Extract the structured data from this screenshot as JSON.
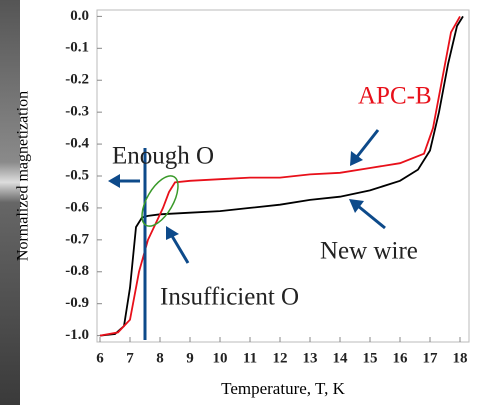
{
  "chart_data": {
    "type": "line",
    "y_label": "Normalized magnetization",
    "x_label": "Temperature, T, K",
    "xlim": [
      5.9,
      18.3
    ],
    "ylim": [
      -1.02,
      0.02
    ],
    "xticks": [
      6,
      7,
      8,
      9,
      10,
      11,
      12,
      13,
      14,
      15,
      16,
      17,
      18
    ],
    "yticks": [
      {
        "value": 0,
        "label": "0.0"
      },
      -0.1,
      -0.2,
      -0.3,
      -0.4,
      -0.5,
      -0.6,
      -0.7,
      -0.8,
      -0.9,
      {
        "value": -1,
        "label": "-1.0"
      }
    ],
    "grid": false,
    "series": [
      {
        "name": "New wire",
        "color": "#000000",
        "x": [
          6,
          6.5,
          6.8,
          7.0,
          7.2,
          7.4,
          7.6,
          8,
          9,
          10,
          11,
          12,
          13,
          14,
          15,
          16,
          16.6,
          17,
          17.3,
          17.6,
          17.9,
          18.1
        ],
        "values": [
          -1.0,
          -0.995,
          -0.97,
          -0.85,
          -0.66,
          -0.63,
          -0.625,
          -0.62,
          -0.615,
          -0.61,
          -0.6,
          -0.59,
          -0.575,
          -0.565,
          -0.545,
          -0.515,
          -0.48,
          -0.42,
          -0.3,
          -0.15,
          -0.03,
          0.0
        ]
      },
      {
        "name": "APC-B",
        "color": "#e8101a",
        "x": [
          6,
          6.6,
          7.0,
          7.3,
          7.6,
          7.9,
          8.1,
          8.3,
          8.5,
          9,
          10,
          11,
          12,
          13,
          14,
          15,
          16,
          16.8,
          17.1,
          17.4,
          17.7,
          18.0
        ],
        "values": [
          -1.0,
          -0.99,
          -0.95,
          -0.8,
          -0.7,
          -0.64,
          -0.6,
          -0.55,
          -0.52,
          -0.515,
          -0.51,
          -0.505,
          -0.505,
          -0.495,
          -0.49,
          -0.475,
          -0.46,
          -0.43,
          -0.35,
          -0.2,
          -0.05,
          0.0
        ]
      }
    ],
    "annotations": [
      "Enough O",
      "Insufficient O"
    ]
  }
}
